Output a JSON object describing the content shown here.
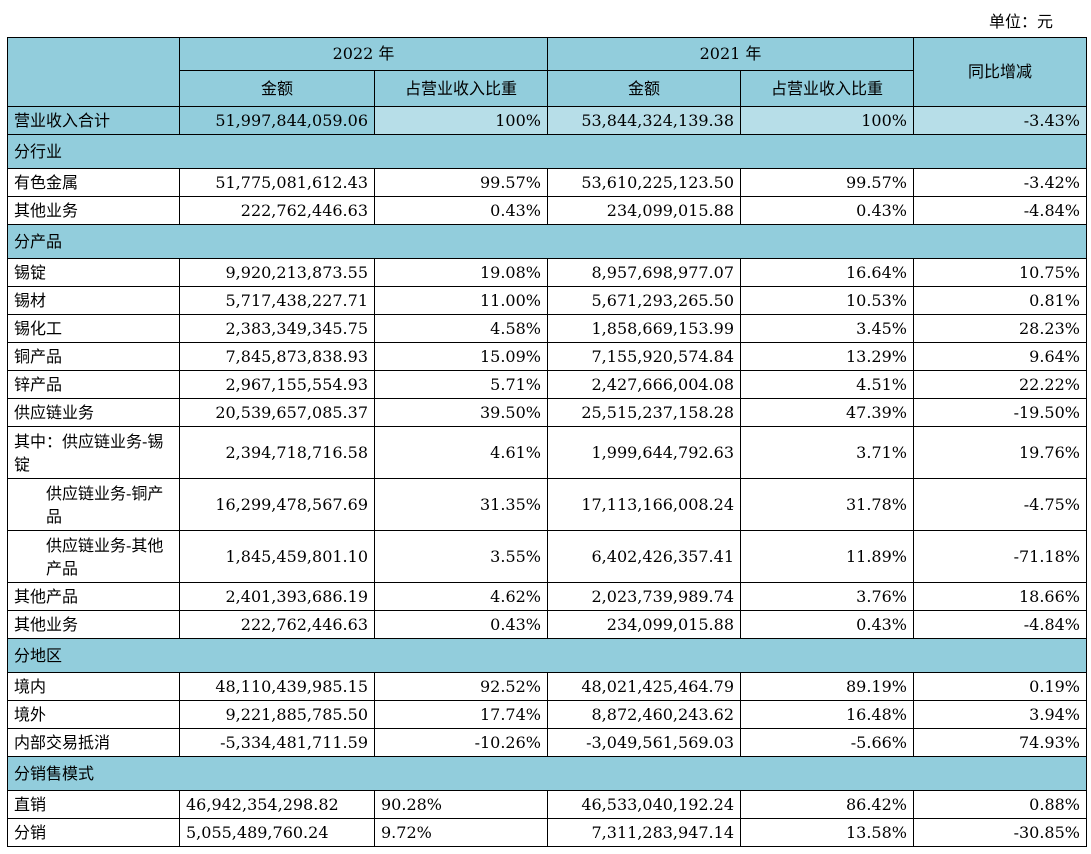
{
  "unit_label": "单位：元",
  "header": {
    "year1": "2022 年",
    "year2": "2021 年",
    "amount": "金额",
    "share": "占营业收入比重",
    "yoy": "同比增减"
  },
  "total": {
    "label": "营业收入合计",
    "a1": "51,997,844,059.06",
    "s1": "100%",
    "a2": "53,844,324,139.38",
    "s2": "100%",
    "yoy": "-3.43%"
  },
  "sections": [
    {
      "title": "分行业",
      "rows": [
        {
          "label": "有色金属",
          "a1": "51,775,081,612.43",
          "s1": "99.57%",
          "a2": "53,610,225,123.50",
          "s2": "99.57%",
          "yoy": "-3.42%"
        },
        {
          "label": "其他业务",
          "a1": "222,762,446.63",
          "s1": "0.43%",
          "a2": "234,099,015.88",
          "s2": "0.43%",
          "yoy": "-4.84%"
        }
      ]
    },
    {
      "title": "分产品",
      "rows": [
        {
          "label": "锡锭",
          "a1": "9,920,213,873.55",
          "s1": "19.08%",
          "a2": "8,957,698,977.07",
          "s2": "16.64%",
          "yoy": "10.75%"
        },
        {
          "label": "锡材",
          "a1": "5,717,438,227.71",
          "s1": "11.00%",
          "a2": "5,671,293,265.50",
          "s2": "10.53%",
          "yoy": "0.81%"
        },
        {
          "label": "锡化工",
          "a1": "2,383,349,345.75",
          "s1": "4.58%",
          "a2": "1,858,669,153.99",
          "s2": "3.45%",
          "yoy": "28.23%"
        },
        {
          "label": "铜产品",
          "a1": "7,845,873,838.93",
          "s1": "15.09%",
          "a2": "7,155,920,574.84",
          "s2": "13.29%",
          "yoy": "9.64%"
        },
        {
          "label": "锌产品",
          "a1": "2,967,155,554.93",
          "s1": "5.71%",
          "a2": "2,427,666,004.08",
          "s2": "4.51%",
          "yoy": "22.22%"
        },
        {
          "label": "供应链业务",
          "a1": "20,539,657,085.37",
          "s1": "39.50%",
          "a2": "25,515,237,158.28",
          "s2": "47.39%",
          "yoy": "-19.50%"
        },
        {
          "label": "其中：供应链业务-锡锭",
          "a1": "2,394,718,716.58",
          "s1": "4.61%",
          "a2": "1,999,644,792.63",
          "s2": "3.71%",
          "yoy": "19.76%"
        },
        {
          "label": "  供应链业务-铜产品",
          "a1": "16,299,478,567.69",
          "s1": "31.35%",
          "a2": "17,113,166,008.24",
          "s2": "31.78%",
          "yoy": "-4.75%"
        },
        {
          "label": "  供应链业务-其他产品",
          "a1": "1,845,459,801.10",
          "s1": "3.55%",
          "a2": "6,402,426,357.41",
          "s2": "11.89%",
          "yoy": "-71.18%"
        },
        {
          "label": "其他产品",
          "a1": "2,401,393,686.19",
          "s1": "4.62%",
          "a2": "2,023,739,989.74",
          "s2": "3.76%",
          "yoy": "18.66%"
        },
        {
          "label": "其他业务",
          "a1": "222,762,446.63",
          "s1": "0.43%",
          "a2": "234,099,015.88",
          "s2": "0.43%",
          "yoy": "-4.84%"
        }
      ]
    },
    {
      "title": "分地区",
      "rows": [
        {
          "label": "境内",
          "a1": "48,110,439,985.15",
          "s1": "92.52%",
          "a2": "48,021,425,464.79",
          "s2": "89.19%",
          "yoy": "0.19%"
        },
        {
          "label": "境外",
          "a1": "9,221,885,785.50",
          "s1": "17.74%",
          "a2": "8,872,460,243.62",
          "s2": "16.48%",
          "yoy": "3.94%"
        },
        {
          "label": "内部交易抵消",
          "a1": "-5,334,481,711.59",
          "s1": "-10.26%",
          "a2": "-3,049,561,569.03",
          "s2": "-5.66%",
          "yoy": "74.93%"
        }
      ]
    },
    {
      "title": "分销售模式",
      "rows": [
        {
          "label": "直销",
          "a1": "46,942,354,298.82",
          "s1": "90.28%",
          "a2": "46,533,040,192.24",
          "s2": "86.42%",
          "yoy": "0.88%"
        },
        {
          "label": "分销",
          "a1": "5,055,489,760.24",
          "s1": "9.72%",
          "a2": "7,311,283,947.14",
          "s2": "13.58%",
          "yoy": "-30.85%"
        }
      ]
    }
  ]
}
